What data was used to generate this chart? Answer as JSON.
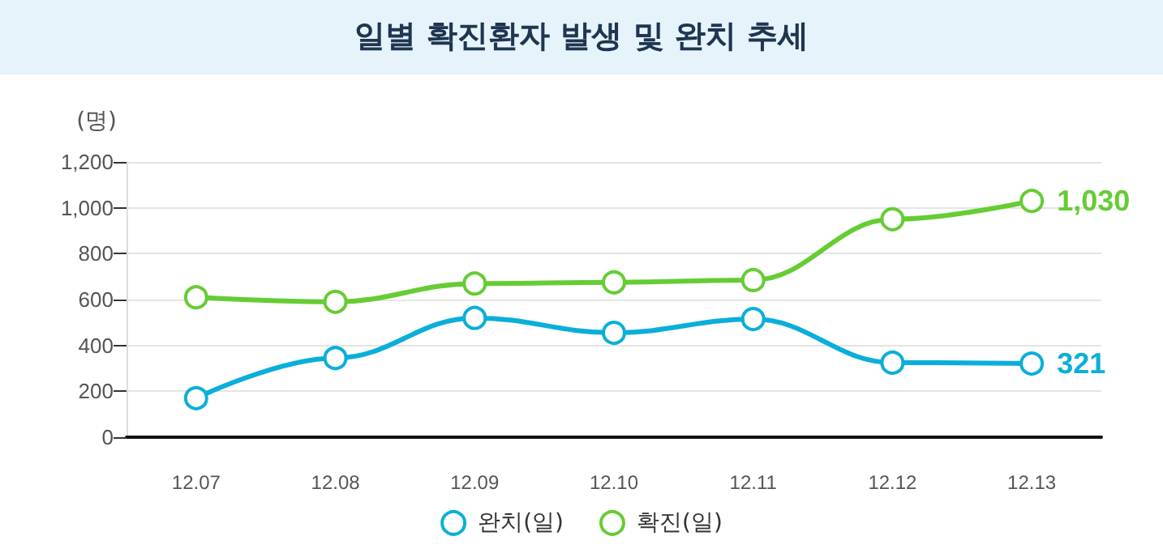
{
  "chart_data": {
    "type": "line",
    "title": "일별 확진환자 발생 및 완치 추세",
    "ylabel": "(명)",
    "categories": [
      "12.07",
      "12.08",
      "12.09",
      "12.10",
      "12.11",
      "12.12",
      "12.13"
    ],
    "series": [
      {
        "name": "완치(일)",
        "color": "#0aafd9",
        "values": [
          170,
          345,
          520,
          455,
          515,
          325,
          321
        ],
        "value_labels": [
          null,
          null,
          null,
          null,
          null,
          null,
          "321"
        ]
      },
      {
        "name": "확진(일)",
        "color": "#66cc33",
        "values": [
          610,
          590,
          670,
          675,
          685,
          950,
          1030
        ],
        "value_labels": [
          null,
          null,
          null,
          null,
          null,
          null,
          "1,030"
        ]
      }
    ],
    "ylim": [
      0,
      1200
    ],
    "yticks": [
      {
        "value": 0,
        "label": "0"
      },
      {
        "value": 200,
        "label": "200"
      },
      {
        "value": 400,
        "label": "400"
      },
      {
        "value": 600,
        "label": "600"
      },
      {
        "value": 800,
        "label": "800"
      },
      {
        "value": 1000,
        "label": "1,000"
      },
      {
        "value": 1200,
        "label": "1,200"
      }
    ],
    "grid": "y",
    "legend": "bottom",
    "marker": "circle",
    "line_style": "solid"
  }
}
